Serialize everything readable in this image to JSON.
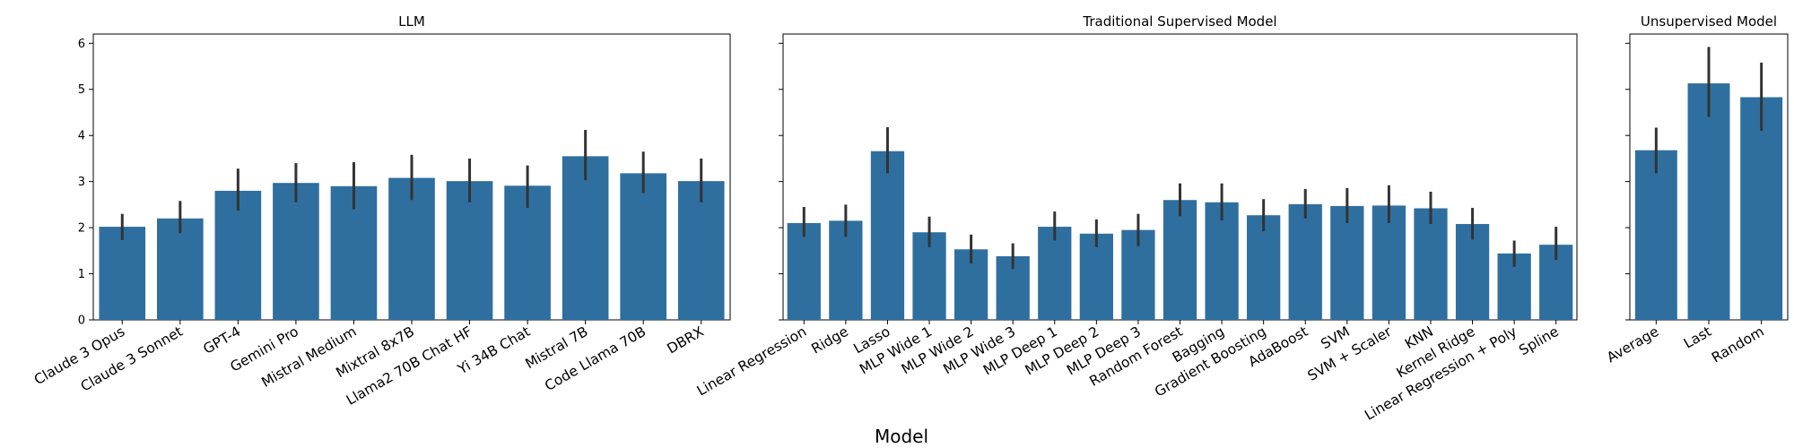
{
  "colors": {
    "bar": "#2f6f9f",
    "errorbar": "#333333",
    "axes": "#000000"
  },
  "xlabel": "Model",
  "chart_data": [
    {
      "type": "bar",
      "title": "LLM",
      "xlabel": "",
      "ylabel": "",
      "ylim": [
        0,
        6.2
      ],
      "yticks": [
        0,
        1,
        2,
        3,
        4,
        5,
        6
      ],
      "categories": [
        "Claude 3 Opus",
        "Claude 3 Sonnet",
        "GPT-4",
        "Gemini Pro",
        "Mistral Medium",
        "Mixtral 8x7B",
        "Llama2 70B Chat HF",
        "Yi 34B Chat",
        "Mistral 7B",
        "Code Llama 70B",
        "DBRX"
      ],
      "values": [
        2.02,
        2.2,
        2.8,
        2.97,
        2.9,
        3.08,
        3.01,
        2.91,
        3.55,
        3.18,
        3.01
      ],
      "err_low": [
        1.73,
        1.88,
        2.37,
        2.55,
        2.4,
        2.6,
        2.55,
        2.43,
        3.03,
        2.75,
        2.55
      ],
      "err_high": [
        2.3,
        2.58,
        3.28,
        3.4,
        3.42,
        3.58,
        3.5,
        3.35,
        4.12,
        3.65,
        3.5
      ]
    },
    {
      "type": "bar",
      "title": "Traditional Supervised Model",
      "xlabel": "",
      "ylabel": "",
      "ylim": [
        0,
        6.2
      ],
      "yticks": [
        0,
        1,
        2,
        3,
        4,
        5,
        6
      ],
      "categories": [
        "Linear Regression",
        "Ridge",
        "Lasso",
        "MLP Wide 1",
        "MLP Wide 2",
        "MLP Wide 3",
        "MLP Deep 1",
        "MLP Deep 2",
        "MLP Deep 3",
        "Random Forest",
        "Bagging",
        "Gradient Boosting",
        "AdaBoost",
        "SVM",
        "SVM + Scaler",
        "KNN",
        "Kernel Ridge",
        "Linear Regression + Poly",
        "Spline"
      ],
      "values": [
        2.1,
        2.15,
        3.66,
        1.9,
        1.53,
        1.38,
        2.02,
        1.87,
        1.95,
        2.6,
        2.55,
        2.27,
        2.51,
        2.47,
        2.48,
        2.42,
        2.08,
        1.44,
        1.63
      ],
      "err_low": [
        1.8,
        1.8,
        3.18,
        1.58,
        1.22,
        1.1,
        1.72,
        1.58,
        1.6,
        2.25,
        2.16,
        1.92,
        2.2,
        2.1,
        2.1,
        2.08,
        1.74,
        1.15,
        1.3
      ],
      "err_high": [
        2.45,
        2.5,
        4.18,
        2.24,
        1.85,
        1.66,
        2.35,
        2.18,
        2.3,
        2.96,
        2.96,
        2.62,
        2.84,
        2.86,
        2.92,
        2.78,
        2.43,
        1.72,
        2.02
      ]
    },
    {
      "type": "bar",
      "title": "Unsupervised Model",
      "xlabel": "",
      "ylabel": "",
      "ylim": [
        0,
        6.2
      ],
      "yticks": [
        0,
        1,
        2,
        3,
        4,
        5,
        6
      ],
      "categories": [
        "Average",
        "Last",
        "Random"
      ],
      "values": [
        3.68,
        5.13,
        4.83
      ],
      "err_low": [
        3.18,
        4.4,
        4.1
      ],
      "err_high": [
        4.17,
        5.92,
        5.58
      ]
    }
  ]
}
